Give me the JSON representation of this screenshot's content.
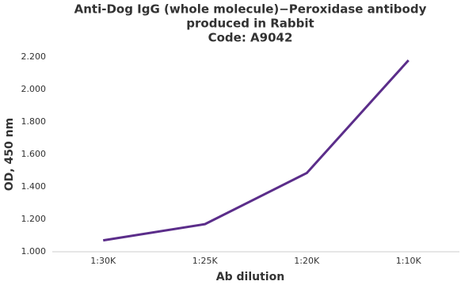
{
  "chart_data": {
    "type": "line",
    "title": [
      "Anti-Dog IgG (whole molecule)−Peroxidase antibody",
      "produced in Rabbit",
      "Code: A9042"
    ],
    "x_label": "Ab dilution",
    "y_label": "OD, 450 nm",
    "categories": [
      "1:30K",
      "1:25K",
      "1:20K",
      "1:10K"
    ],
    "series": [
      {
        "name": "OD",
        "color": "#5b2d8a",
        "values": [
          1.07,
          1.17,
          1.485,
          2.18
        ]
      }
    ],
    "ylim": [
      1.0,
      2.2
    ],
    "yticks": [
      {
        "value": 1.0,
        "label": "1.000"
      },
      {
        "value": 1.2,
        "label": "1.200"
      },
      {
        "value": 1.4,
        "label": "1.400"
      },
      {
        "value": 1.6,
        "label": "1.600"
      },
      {
        "value": 1.8,
        "label": "1.800"
      },
      {
        "value": 2.0,
        "label": "2.000"
      },
      {
        "value": 2.2,
        "label": "2.200"
      }
    ],
    "grid": false
  }
}
